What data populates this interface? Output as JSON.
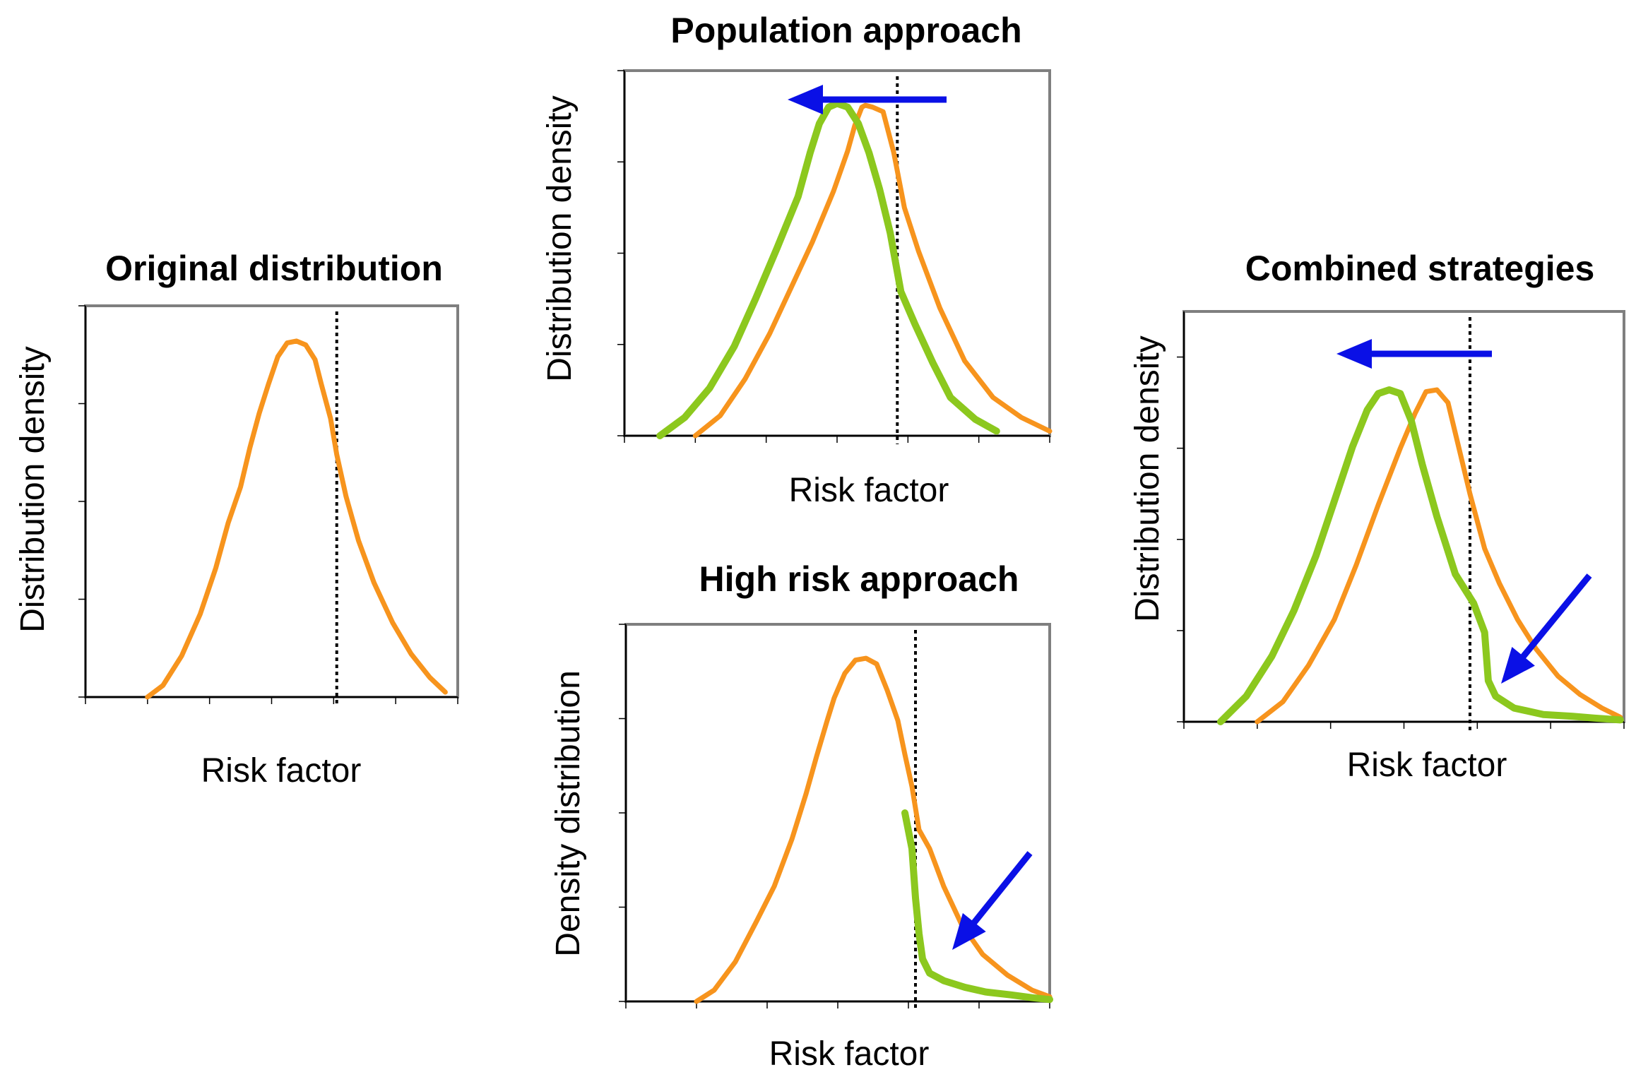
{
  "colors": {
    "original": "#f7941d",
    "shifted": "#8cc81e",
    "arrow": "#0a10e6"
  },
  "chart_data": [
    {
      "type": "line",
      "title": "Original distribution",
      "xlabel": "Risk factor",
      "ylabel": "Distribution density",
      "xlim": [
        0,
        6
      ],
      "ylim": [
        0,
        4
      ],
      "threshold_x": 4.05,
      "series": [
        {
          "role": "original",
          "x": [
            1.0,
            1.25,
            1.55,
            1.85,
            2.1,
            2.3,
            2.5,
            2.65,
            2.8,
            2.95,
            3.1,
            3.25,
            3.4,
            3.55,
            3.7,
            3.8,
            3.95,
            4.05,
            4.2,
            4.4,
            4.65,
            4.95,
            5.25,
            5.55,
            5.8
          ],
          "y": [
            0.0,
            0.12,
            0.42,
            0.85,
            1.32,
            1.78,
            2.15,
            2.55,
            2.9,
            3.2,
            3.48,
            3.62,
            3.64,
            3.6,
            3.45,
            3.2,
            2.85,
            2.48,
            2.05,
            1.6,
            1.17,
            0.76,
            0.44,
            0.2,
            0.05
          ]
        }
      ]
    },
    {
      "type": "line",
      "title": "Population approach",
      "xlabel": "Risk factor",
      "ylabel": "Distribution density",
      "xlim": [
        0,
        6
      ],
      "ylim": [
        0,
        4
      ],
      "threshold_x": 3.85,
      "arrow": "left-shift",
      "series": [
        {
          "role": "original",
          "x": [
            1.0,
            1.35,
            1.7,
            2.05,
            2.35,
            2.65,
            2.95,
            3.15,
            3.25,
            3.35,
            3.4,
            3.5,
            3.65,
            3.8,
            3.95,
            4.15,
            4.45,
            4.8,
            5.2,
            5.6,
            6.0
          ],
          "y": [
            0.0,
            0.22,
            0.62,
            1.12,
            1.62,
            2.12,
            2.68,
            3.12,
            3.4,
            3.6,
            3.62,
            3.6,
            3.55,
            3.1,
            2.5,
            2.02,
            1.4,
            0.82,
            0.42,
            0.2,
            0.05
          ]
        },
        {
          "role": "shifted",
          "x": [
            0.5,
            0.85,
            1.2,
            1.55,
            1.85,
            2.15,
            2.45,
            2.62,
            2.75,
            2.88,
            3.0,
            3.15,
            3.3,
            3.45,
            3.6,
            3.75,
            3.9,
            4.1,
            4.35,
            4.6,
            4.95,
            5.25
          ],
          "y": [
            0.0,
            0.2,
            0.52,
            0.98,
            1.5,
            2.05,
            2.62,
            3.1,
            3.42,
            3.6,
            3.64,
            3.6,
            3.42,
            3.1,
            2.7,
            2.22,
            1.58,
            1.22,
            0.8,
            0.42,
            0.18,
            0.05
          ]
        }
      ]
    },
    {
      "type": "line",
      "title": "High risk approach",
      "xlabel": "Risk factor",
      "ylabel": "Density distribution",
      "xlim": [
        0,
        6
      ],
      "ylim": [
        0,
        4
      ],
      "threshold_x": 4.1,
      "arrow": "tail-reduction",
      "series": [
        {
          "role": "original",
          "x": [
            1.0,
            1.25,
            1.55,
            1.85,
            2.1,
            2.35,
            2.55,
            2.7,
            2.85,
            2.95,
            3.1,
            3.25,
            3.4,
            3.55,
            3.7,
            3.85,
            3.95,
            4.05,
            4.15,
            4.3,
            4.5,
            4.75,
            5.05,
            5.4,
            5.75,
            6.0
          ],
          "y": [
            0.0,
            0.12,
            0.42,
            0.85,
            1.22,
            1.72,
            2.2,
            2.6,
            2.98,
            3.22,
            3.48,
            3.62,
            3.64,
            3.58,
            3.3,
            2.98,
            2.62,
            2.28,
            1.82,
            1.62,
            1.22,
            0.82,
            0.5,
            0.28,
            0.12,
            0.05
          ]
        },
        {
          "role": "shifted",
          "x": [
            3.95,
            4.05,
            4.1,
            4.15,
            4.2,
            4.3,
            4.5,
            4.8,
            5.1,
            5.45,
            5.75,
            6.0
          ],
          "y": [
            2.0,
            1.62,
            1.1,
            0.72,
            0.45,
            0.3,
            0.22,
            0.15,
            0.1,
            0.07,
            0.04,
            0.02
          ]
        }
      ]
    },
    {
      "type": "line",
      "title": "Combined strategies",
      "xlabel": "Risk factor",
      "ylabel": "Distribution density",
      "xlim": [
        0,
        6
      ],
      "ylim": [
        0,
        4.5
      ],
      "threshold_x": 3.9,
      "arrows": [
        "left-shift",
        "tail-reduction"
      ],
      "series": [
        {
          "role": "original",
          "x": [
            1.0,
            1.35,
            1.7,
            2.05,
            2.35,
            2.65,
            2.95,
            3.15,
            3.3,
            3.45,
            3.6,
            3.75,
            3.9,
            4.1,
            4.3,
            4.55,
            4.8,
            5.1,
            5.4,
            5.7,
            5.95
          ],
          "y": [
            0.0,
            0.22,
            0.62,
            1.12,
            1.72,
            2.38,
            3.0,
            3.38,
            3.62,
            3.64,
            3.5,
            3.0,
            2.5,
            1.9,
            1.52,
            1.12,
            0.8,
            0.5,
            0.3,
            0.15,
            0.05
          ]
        },
        {
          "role": "shifted",
          "x": [
            0.5,
            0.85,
            1.2,
            1.5,
            1.8,
            2.05,
            2.3,
            2.5,
            2.65,
            2.8,
            2.95,
            3.1,
            3.25,
            3.45,
            3.7,
            3.95,
            4.1,
            4.15,
            4.25,
            4.5,
            4.9,
            5.3,
            5.6,
            5.95
          ],
          "y": [
            0.0,
            0.28,
            0.72,
            1.22,
            1.82,
            2.42,
            3.02,
            3.42,
            3.6,
            3.64,
            3.6,
            3.3,
            2.82,
            2.25,
            1.62,
            1.3,
            0.98,
            0.45,
            0.28,
            0.15,
            0.08,
            0.06,
            0.04,
            0.02
          ]
        }
      ]
    }
  ]
}
